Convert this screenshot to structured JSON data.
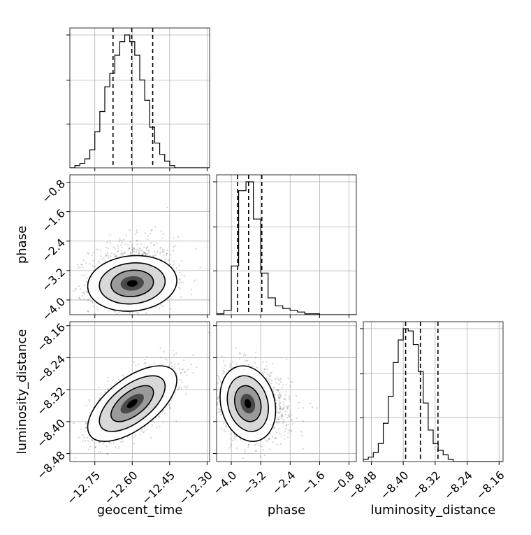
{
  "chart_data": {
    "type": "corner",
    "grid": true,
    "parameters": [
      "geocent_time",
      "phase",
      "luminosity_distance"
    ],
    "axis_labels": {
      "bottom": [
        "geocent_time",
        "phase",
        "luminosity_distance"
      ],
      "left": [
        "phase",
        "luminosity_distance"
      ]
    },
    "ranges": {
      "geocent_time": [
        -12.85,
        -12.29
      ],
      "phase": [
        -4.4,
        -0.6
      ],
      "luminosity_distance": [
        -8.5,
        -8.15
      ]
    },
    "ticks": {
      "geocent_time": [
        -12.75,
        -12.6,
        -12.45,
        -12.3
      ],
      "phase": [
        -4.0,
        -3.2,
        -2.4,
        -1.6,
        -0.8
      ],
      "luminosity_distance": [
        -8.48,
        -8.4,
        -8.32,
        -8.24,
        -8.16
      ]
    },
    "tick_labels": {
      "geocent_time": [
        "−12.75",
        "−12.60",
        "−12.45",
        "−12.30"
      ],
      "phase": [
        "−4.0",
        "−3.2",
        "−2.4",
        "−1.6",
        "−0.8"
      ],
      "luminosity_distance": [
        "−8.48",
        "−8.40",
        "−8.32",
        "−8.24",
        "−8.16"
      ]
    },
    "quantiles": {
      "geocent_time": [
        -12.677,
        -12.602,
        -12.518
      ],
      "phase": [
        -3.83,
        -3.53,
        -3.17
      ],
      "luminosity_distance": [
        -8.394,
        -8.357,
        -8.313
      ]
    },
    "histograms": {
      "geocent_time": {
        "edges_start": -12.85,
        "bin_width": 0.02,
        "counts": [
          0,
          1,
          2,
          4,
          8,
          16,
          25,
          36,
          42,
          50,
          56,
          59,
          56,
          50,
          39,
          30,
          18,
          11,
          6,
          3,
          1,
          0,
          0,
          0,
          0,
          0,
          0,
          0
        ]
      },
      "phase": {
        "edges_start": -4.4,
        "bin_width": 0.2,
        "counts": [
          1,
          5,
          55,
          140,
          150,
          108,
          47,
          19,
          10,
          7,
          5,
          3,
          1,
          1,
          0,
          0,
          0,
          0,
          0
        ]
      },
      "luminosity_distance": {
        "edges_start": -8.5,
        "bin_width": 0.0125,
        "counts": [
          1,
          2,
          4,
          8,
          17,
          29,
          44,
          54,
          59,
          58,
          52,
          40,
          26,
          14,
          8,
          5,
          3,
          1,
          0,
          0,
          0,
          0,
          0,
          0,
          0,
          0,
          0,
          0
        ]
      }
    },
    "pairs": [
      {
        "x": "geocent_time",
        "y": "phase",
        "mean": [
          -12.6,
          -3.55
        ],
        "std": [
          0.085,
          0.36
        ],
        "rho": 0.1
      },
      {
        "x": "geocent_time",
        "y": "luminosity_distance",
        "mean": [
          -12.6,
          -8.355
        ],
        "std": [
          0.085,
          0.045
        ],
        "rho": 0.62
      },
      {
        "x": "phase",
        "y": "luminosity_distance",
        "mean": [
          -3.55,
          -8.355
        ],
        "std": [
          0.36,
          0.045
        ],
        "rho": -0.18
      }
    ]
  }
}
